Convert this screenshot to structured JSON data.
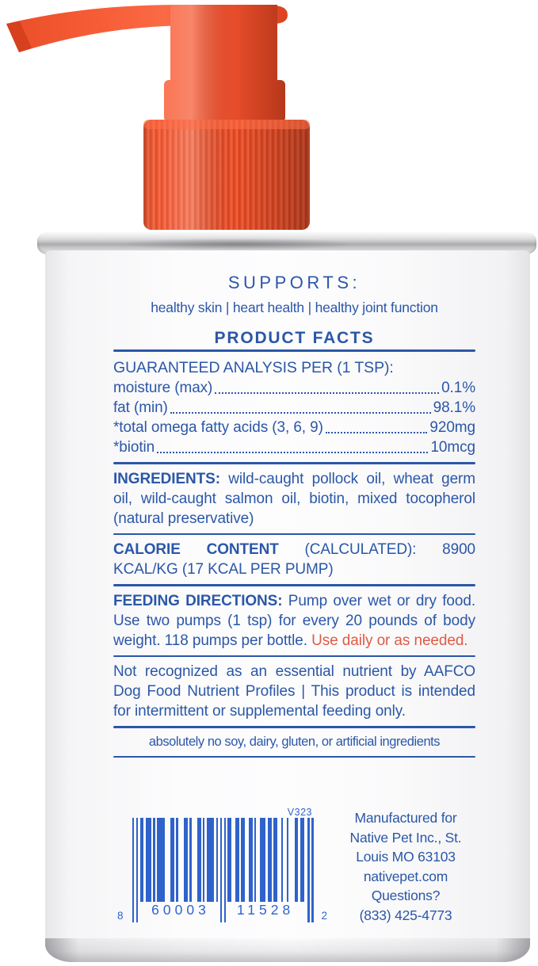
{
  "colors": {
    "label_blue": "#2b57a7",
    "accent_orange": "#e05a45",
    "pump_orange": "#f1552f",
    "barcode_blue": "#2f63cb"
  },
  "label": {
    "supports_heading": "SUPPORTS:",
    "supports_tagline": "healthy skin | heart health | healthy joint function",
    "product_facts_title": "PRODUCT FACTS",
    "guaranteed_analysis": {
      "heading_bold": "GUARANTEED ANALYSIS",
      "heading_rest": " PER (1 TSP):",
      "rows": [
        {
          "name": "moisture (max)",
          "value": "0.1%"
        },
        {
          "name": "fat (min)",
          "value": "98.1%"
        },
        {
          "name": "*total omega fatty acids (3, 6, 9)",
          "value": "920mg"
        },
        {
          "name": "*biotin",
          "value": "10mcg"
        }
      ]
    },
    "ingredients": {
      "label": "INGREDIENTS:",
      "text": " wild-caught pollock oil, wheat germ oil, wild-caught salmon oil, biotin, mixed tocopherol (natural preservative)"
    },
    "calorie": {
      "label": "CALORIE CONTENT",
      "text": " (CALCULATED): 8900 KCAL/KG (17 KCAL PER PUMP)"
    },
    "feeding": {
      "label": "FEEDING DIRECTIONS:",
      "text": " Pump over wet or dry food. Use two pumps (1 tsp) for every 20 pounds of body weight. 118 pumps per bottle. ",
      "highlight": "Use daily or as needed."
    },
    "aafco_note": "Not recognized as an essential nutrient by AAFCO Dog Food Nutrient Profiles | This product is intended for intermittent or supplemental feeding only.",
    "no_claims": "absolutely no soy, dairy, gluten, or artificial ingredients"
  },
  "barcode": {
    "version_code": "V323",
    "digit_left": "8",
    "digits_group1": "60003",
    "digits_group2": "11528",
    "digit_right": "2",
    "modules": "10101101110101111000110100011010001101011110101010110011011001101001110110110010010001101100101"
  },
  "manufacturer": {
    "lines": [
      "Manufactured for",
      "Native Pet Inc., St.",
      "Louis MO 63103",
      "nativepet.com",
      "Questions?",
      "(833) 425-4773"
    ]
  }
}
